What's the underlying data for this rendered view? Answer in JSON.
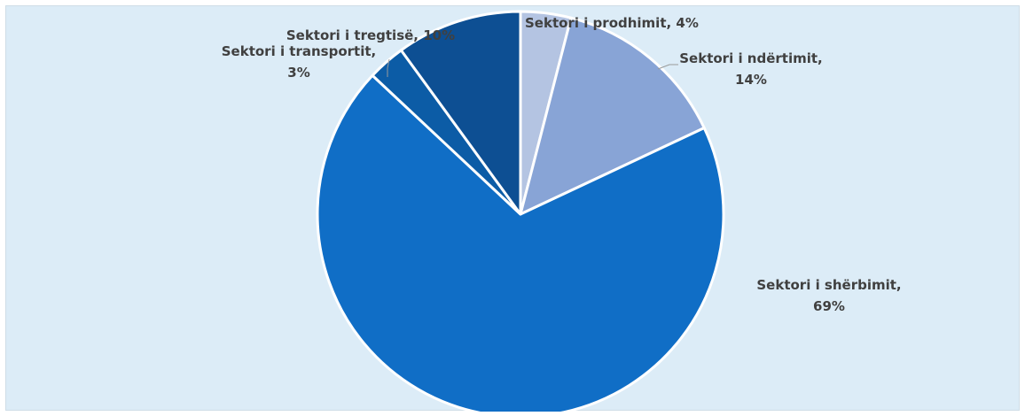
{
  "chart_data": {
    "type": "pie",
    "title": "",
    "slices": [
      {
        "label": "Sektori i prodhimit",
        "value": 4,
        "value_label": "4%",
        "color": "#b4c4e2"
      },
      {
        "label": "Sektori i ndërtimit",
        "value": 14,
        "value_label": "14%",
        "color": "#88a4d6"
      },
      {
        "label": "Sektori i shërbimit",
        "value": 69,
        "value_label": "69%",
        "color": "#106ec6"
      },
      {
        "label": "Sektori i transportit",
        "value": 3,
        "value_label": "3%",
        "color": "#0c5ca6"
      },
      {
        "label": "Sektori i tregtisë",
        "value": 10,
        "value_label": "10%",
        "color": "#0d4f93"
      }
    ],
    "start_angle": "12 o'clock",
    "direction": "clockwise",
    "legend": "none",
    "slice_border_color": "#ffffff",
    "background_color": "#dcecf7"
  }
}
